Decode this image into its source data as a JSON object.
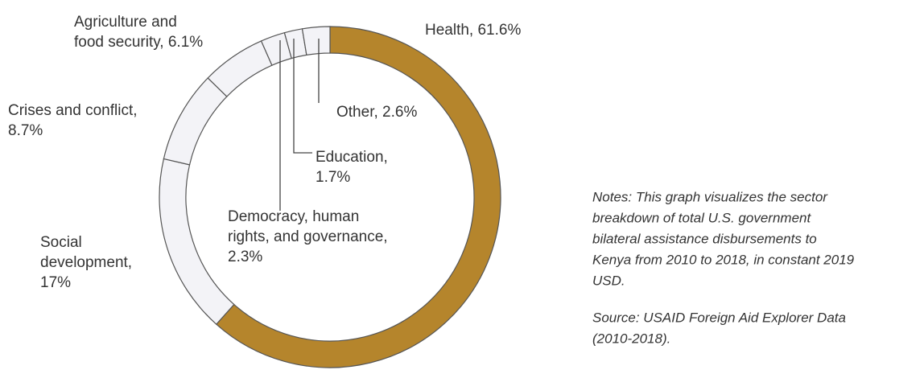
{
  "chart_data": {
    "type": "donut",
    "labels": [
      [
        "Health, 61.6%"
      ],
      [
        "Social",
        "development,",
        "17%"
      ],
      [
        "Crises and conflict,",
        "8.7%"
      ],
      [
        "Agriculture and",
        "food security, 6.1%"
      ],
      [
        "Democracy, human",
        "rights, and governance,",
        "2.3%"
      ],
      [
        "Education,",
        "1.7%"
      ],
      [
        "Other, 2.6%"
      ]
    ],
    "values": [
      61.6,
      17,
      8.7,
      6.1,
      2.3,
      1.7,
      2.6
    ],
    "colors": [
      "#b5852c",
      "#f3f3f7",
      "#f3f3f7",
      "#f3f3f7",
      "#f3f3f7",
      "#f3f3f7",
      "#f3f3f7"
    ],
    "notes": [
      "Notes: This graph visualizes the sector",
      "breakdown of total U.S. government",
      "bilateral assistance disbursements to",
      "Kenya from 2010 to 2018, in constant 2019",
      "USD."
    ],
    "source": [
      "Source: USAID Foreign Aid Explorer Data",
      "(2010-2018)."
    ]
  }
}
